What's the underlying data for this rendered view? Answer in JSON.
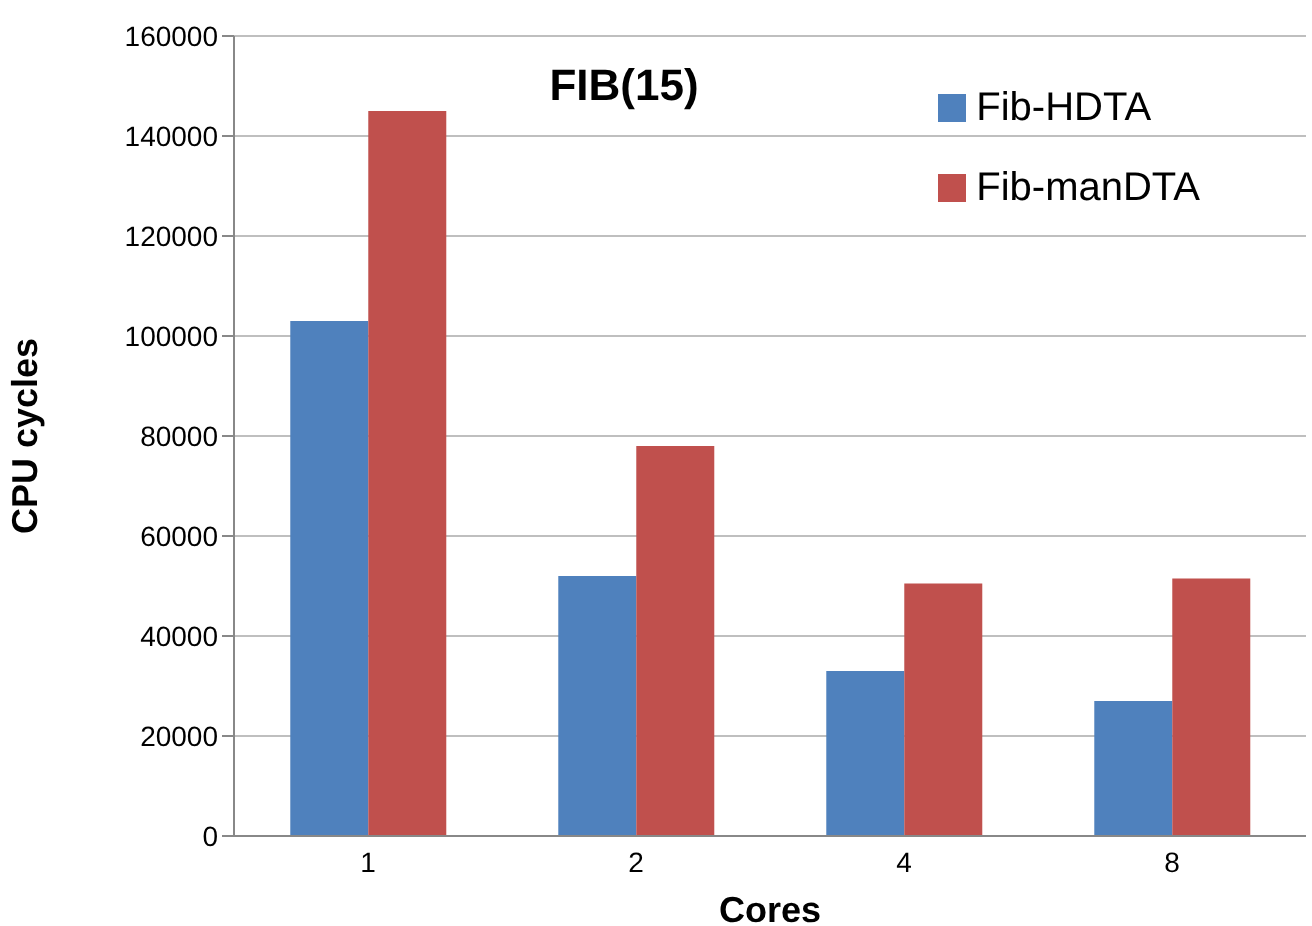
{
  "chart_data": {
    "type": "bar",
    "title": "FIB(15)",
    "xlabel": "Cores",
    "ylabel": "CPU cycles",
    "categories": [
      "1",
      "2",
      "4",
      "8"
    ],
    "series": [
      {
        "name": "Fib-HDTA",
        "color": "#4f81bd",
        "values": [
          103000,
          52000,
          33000,
          27000
        ]
      },
      {
        "name": "Fib-manDTA",
        "color": "#c0504d",
        "values": [
          145000,
          78000,
          50500,
          51500
        ]
      }
    ],
    "ylim": [
      0,
      160000
    ],
    "yticks": [
      0,
      20000,
      40000,
      60000,
      80000,
      100000,
      120000,
      140000,
      160000
    ],
    "grid": "y",
    "legend": "top right"
  }
}
